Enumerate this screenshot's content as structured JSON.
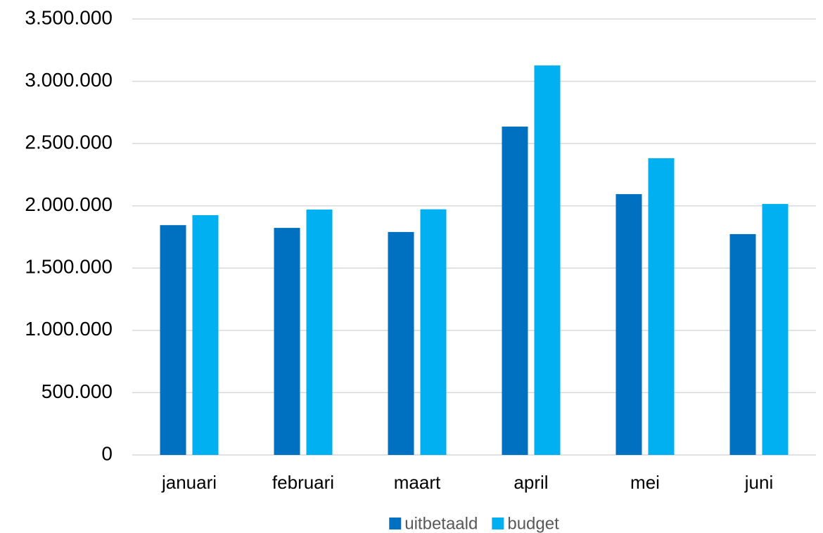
{
  "chart_data": {
    "type": "bar",
    "categories": [
      "januari",
      "februari",
      "maart",
      "april",
      "mei",
      "juni"
    ],
    "series": [
      {
        "name": "uitbetaald",
        "color": "#0070c0",
        "values": [
          1845000,
          1823000,
          1790000,
          2636000,
          2094000,
          1773000
        ]
      },
      {
        "name": "budget",
        "color": "#00b0f0",
        "values": [
          1925000,
          1970000,
          1972000,
          3127000,
          2382000,
          2015000
        ]
      }
    ],
    "ylim": [
      0,
      3500000
    ],
    "yticks": [
      0,
      {
        "value": 500000,
        "label": "500.000"
      },
      {
        "value": 1000000,
        "label": "1.000.000"
      },
      {
        "value": 1500000,
        "label": "1.500.000"
      },
      {
        "value": 2000000,
        "label": "2.000.000"
      },
      {
        "value": 2500000,
        "label": "2.500.000"
      },
      {
        "value": 3000000,
        "label": "3.000.000"
      },
      {
        "value": 3500000,
        "label": "3.500.000"
      }
    ],
    "grid": true,
    "legend": "bottom"
  }
}
